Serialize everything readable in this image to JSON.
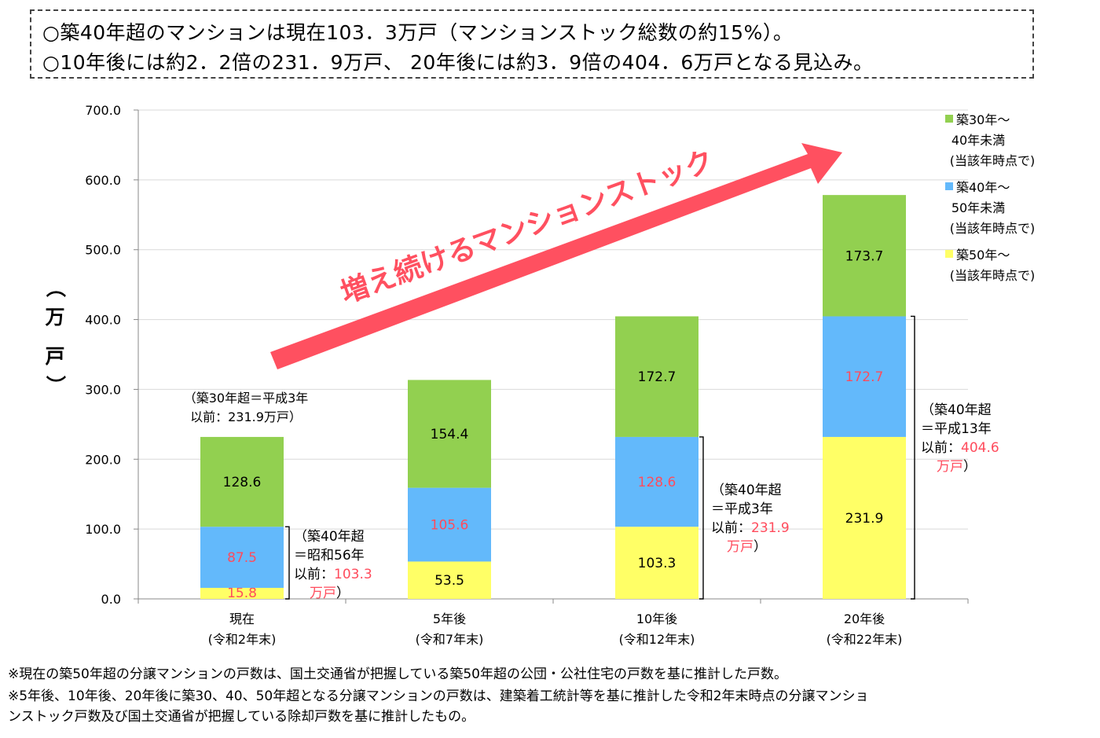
{
  "summary": {
    "line1": "○築40年超のマンションは現在103．3万戸（マンションストック総数の約15%）。",
    "line2": "○10年後には約2．2倍の231．9万戸、 20年後には約3．9倍の404．6万戸となる見込み。"
  },
  "colors": {
    "green": "#92d050",
    "blue": "#63b9fb",
    "yellow": "#ffff66",
    "red_label": "#ff4b5c",
    "arrow": "#ff5060",
    "grid": "#d9d9d9"
  },
  "chart_data": {
    "type": "bar",
    "stacked": true,
    "categories": [
      "現在\n(令和2年末)",
      "5年後\n(令和7年末)",
      "10年後\n(令和12年末)",
      "20年後\n(令和22年末)"
    ],
    "ylabel": "（万戸）",
    "ylim": [
      0,
      700
    ],
    "yticks": [
      "0.0",
      "100.0",
      "200.0",
      "300.0",
      "400.0",
      "500.0",
      "600.0",
      "700.0"
    ],
    "grid": true,
    "series": [
      {
        "name": "築50年～\n(当該年時点で)",
        "color": "yellow",
        "values": [
          15.8,
          53.5,
          103.3,
          231.9
        ],
        "labels": [
          "15.8",
          "53.5",
          "103.3",
          "231.9"
        ]
      },
      {
        "name": "築40年～\n50年未満\n(当該年時点で)",
        "color": "blue",
        "values": [
          87.5,
          105.6,
          128.6,
          172.7
        ],
        "labels": [
          "87.5",
          "105.6",
          "128.6",
          "172.7"
        ]
      },
      {
        "name": "築30年～\n40年未満\n(当該年時点で)",
        "color": "green",
        "values": [
          128.6,
          154.4,
          172.7,
          173.7
        ],
        "labels": [
          "128.6",
          "154.4",
          "172.7",
          "173.7"
        ]
      }
    ],
    "legend_order": [
      2,
      1,
      0
    ],
    "legend_position": "right",
    "arrow_text": "増え続けるマンションストック",
    "annotations": [
      {
        "text": "（築30年超＝平成3年\n以前：231.9万戸）"
      },
      {
        "text": "（築40年超\n＝昭和56年\n以前：",
        "value": "103.3\n万戸",
        "close": "）"
      },
      {
        "text": "（築40年超\n＝平成3年\n以前：",
        "value": "231.9\n万戸",
        "close": "）"
      },
      {
        "text": "（築40年超\n＝平成13年\n以前：",
        "value": "404.6\n万戸",
        "close": "）"
      }
    ]
  },
  "notes": [
    "※現在の築50年超の分譲マンションの戸数は、国土交通省が把握している築50年超の公団・公社住宅の戸数を基に推計した戸数。",
    "※5年後、10年後、20年後に築30、40、50年超となる分譲マンションの戸数は、建築着工統計等を基に推計した令和2年末時点の分譲マンショ",
    "ンストック戸数及び国土交通省が把握している除却戸数を基に推計したもの。"
  ]
}
